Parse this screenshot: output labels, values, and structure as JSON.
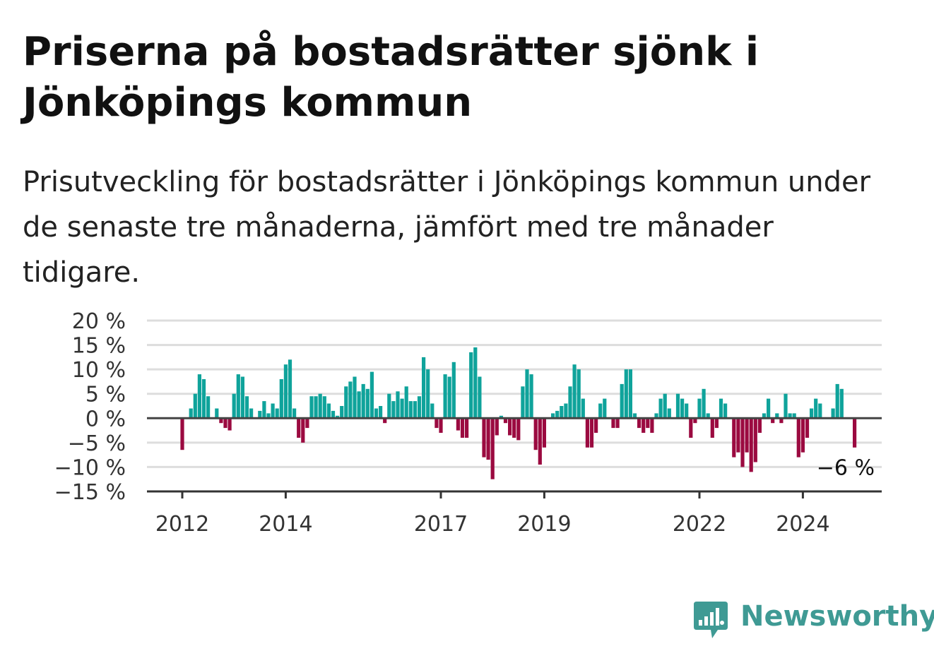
{
  "header": {
    "title": "Priserna på bostadsrätter sjönk i Jönköpings kommun",
    "subtitle": "Prisutveckling för bostadsrätter i Jönköpings kommun under de senaste tre månaderna, jämfört med tre månader tidigare."
  },
  "brand": {
    "name": "Newsworthy",
    "icon": "newsworthy-logo-icon",
    "color": "#3f9a94"
  },
  "chart_data": {
    "type": "bar",
    "title": "Priserna på bostadsrätter sjönk i Jönköpings kommun",
    "subtitle": "Prisutveckling för bostadsrätter i Jönköpings kommun under de senaste tre månaderna, jämfört med tre månader tidigare.",
    "x_start": "2012-01",
    "x_unit": "month",
    "x_tick_labels": [
      "2012",
      "2014",
      "2017",
      "2019",
      "2022",
      "2024"
    ],
    "y_tick_labels": [
      "20 %",
      "15 %",
      "10 %",
      "5 %",
      "0 %",
      "−5 %",
      "−10 %",
      "−15 %"
    ],
    "ylim": [
      -15,
      20
    ],
    "grid": true,
    "colors": {
      "positive": "#0fa39b",
      "negative": "#9b0a40"
    },
    "last_value_label": "−6 %",
    "values": [
      -6.5,
      null,
      2,
      5,
      9,
      8,
      4.5,
      null,
      2,
      -1,
      -2,
      -2.5,
      5,
      9,
      8.5,
      4.5,
      2,
      null,
      1.5,
      3.5,
      1,
      3,
      2,
      8,
      11,
      12,
      2,
      -4,
      -5,
      -2,
      4.5,
      4.5,
      5,
      4.5,
      3,
      1.5,
      0.5,
      2.5,
      6.5,
      7.5,
      8.5,
      5.5,
      7,
      6,
      9.5,
      2,
      2.5,
      -1,
      5,
      3.5,
      5.5,
      4,
      6.5,
      3.5,
      3.5,
      4.5,
      12.5,
      10,
      3,
      -2,
      -3,
      9,
      8.5,
      11.5,
      -2.5,
      -4,
      -4,
      13.5,
      14.5,
      8.5,
      -8,
      -8.5,
      -12.5,
      -3.5,
      0.5,
      -1,
      -3.5,
      -4,
      -4.5,
      6.5,
      10,
      9,
      -6.5,
      -9.5,
      -6,
      0,
      1,
      1.5,
      2.5,
      3,
      6.5,
      11,
      10,
      4,
      -6,
      -6,
      -3,
      3,
      4,
      0,
      -2,
      -2,
      7,
      10,
      10,
      1,
      -2,
      -3,
      -2,
      -3,
      1,
      4,
      5,
      2,
      0,
      5,
      4,
      3,
      -4,
      -1,
      4,
      6,
      1,
      -4,
      -2,
      4,
      3,
      0,
      -8,
      -7,
      -10,
      -7,
      -11,
      -9,
      -3,
      1,
      4,
      -1,
      1,
      -1,
      5,
      1,
      1,
      -8,
      -7,
      -4,
      2,
      4,
      3,
      null,
      null,
      2,
      7,
      6,
      null,
      null,
      -6
    ]
  }
}
